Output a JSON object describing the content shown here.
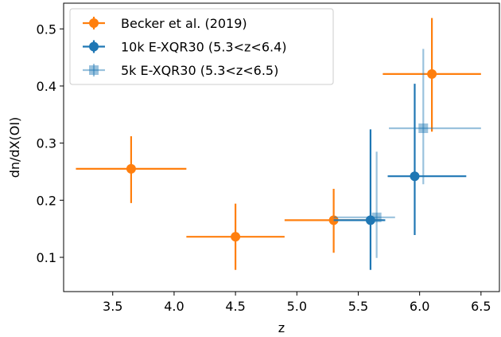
{
  "chart_data": {
    "type": "scatter",
    "xlabel": "z",
    "ylabel": "dn/dX(OI)",
    "xlim": [
      3.1,
      6.65
    ],
    "ylim": [
      0.04,
      0.545
    ],
    "xticks": [
      "3.5",
      "4.0",
      "4.5",
      "5.0",
      "5.5",
      "6.0",
      "6.5"
    ],
    "yticks": [
      "0.1",
      "0.2",
      "0.3",
      "0.4",
      "0.5"
    ],
    "grid": false,
    "legend_position": "top-left",
    "series": [
      {
        "name": "Becker et al. (2019)",
        "marker": "circle",
        "color": "#ff7f0e",
        "alpha": 1.0,
        "points": [
          {
            "x": 3.65,
            "y": 0.255,
            "xerr": [
              0.45,
              0.45
            ],
            "yerr": [
              0.06,
              0.057
            ]
          },
          {
            "x": 4.5,
            "y": 0.136,
            "xerr": [
              0.4,
              0.4
            ],
            "yerr": [
              0.058,
              0.058
            ]
          },
          {
            "x": 5.3,
            "y": 0.165,
            "xerr": [
              0.4,
              0.4
            ],
            "yerr": [
              0.057,
              0.055
            ]
          },
          {
            "x": 6.1,
            "y": 0.421,
            "xerr": [
              0.4,
              0.4
            ],
            "yerr": [
              0.101,
              0.098
            ]
          }
        ]
      },
      {
        "name": "10k E-XQR30 (5.3<z<6.4)",
        "marker": "circle",
        "color": "#1f77b4",
        "alpha": 1.0,
        "points": [
          {
            "x": 5.6,
            "y": 0.165,
            "xerr": [
              0.3,
              0.12
            ],
            "yerr": [
              0.087,
              0.159
            ]
          },
          {
            "x": 5.96,
            "y": 0.242,
            "xerr": [
              0.22,
              0.42
            ],
            "yerr": [
              0.103,
              0.162
            ]
          }
        ]
      },
      {
        "name": "5k E-XQR30 (5.3<z<6.5)",
        "marker": "square",
        "color": "#1f77b4",
        "alpha": 0.45,
        "points": [
          {
            "x": 5.65,
            "y": 0.17,
            "xerr": [
              0.35,
              0.15
            ],
            "yerr": [
              0.071,
              0.115
            ]
          },
          {
            "x": 6.03,
            "y": 0.326,
            "xerr": [
              0.28,
              0.47
            ],
            "yerr": [
              0.098,
              0.139
            ]
          }
        ]
      }
    ]
  }
}
